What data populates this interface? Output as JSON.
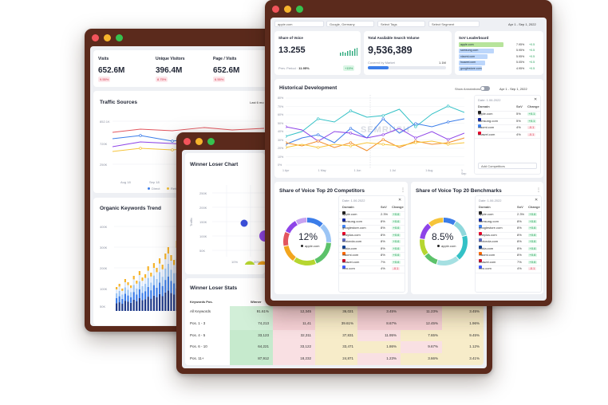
{
  "left_window": {
    "metrics": [
      {
        "label": "Visits",
        "value": "652.6M",
        "change": "9.55%"
      },
      {
        "label": "Unique Visitors",
        "value": "396.4M",
        "change": "8.75%"
      },
      {
        "label": "Page / Visits",
        "value": "652.6M",
        "change": "6.55%"
      }
    ],
    "traffic_title": "Traffic Sources",
    "traffic_button": "Last 6 mo",
    "traffic_y": [
      "852.1K",
      "720K",
      "250K"
    ],
    "traffic_x": [
      "Aug 18",
      "Sep 18",
      "Oct 18"
    ],
    "traffic_legend": [
      "Direct",
      "Referral"
    ],
    "organic_title": "Organic Keywords Trend",
    "organic_y": [
      "400K",
      "300K",
      "200K",
      "100K",
      "50K"
    ]
  },
  "mid_window": {
    "winner_title": "Winner Loser Chart",
    "winner_y": [
      "250K",
      "200K",
      "150K",
      "100K",
      "50K"
    ],
    "winner_x": [
      "10%",
      "20%"
    ],
    "winner_axis": "Traffic",
    "stats_title": "Winner Loser Stats",
    "stats_headers": [
      "Keywords Pos.",
      "Winner"
    ],
    "stats_rows": [
      {
        "label": "All Keywords",
        "values": [
          "91.61%",
          "12,345",
          "36,021",
          "3.45%",
          "11.23%",
          "3.45%"
        ]
      },
      {
        "label": "Pos. 1 - 3",
        "values": [
          "74,213",
          "11,41",
          "39.61%",
          "8.67%",
          "12.45%",
          "1.96%"
        ]
      },
      {
        "label": "Pos. 4 - 5",
        "values": [
          "33,123",
          "32,311",
          "37,831",
          "11.95%",
          "7.65%",
          "9.45%"
        ]
      },
      {
        "label": "Pos. 6 - 10",
        "values": [
          "64,221",
          "33,122",
          "33,471",
          "1.86%",
          "9.67%",
          "1.12%"
        ]
      },
      {
        "label": "Pos. 11+",
        "values": [
          "87,912",
          "18,232",
          "24,871",
          "1.23%",
          "3.66%",
          "3.41%"
        ]
      }
    ]
  },
  "right_window": {
    "domain_select": "apple.com",
    "engine_select": "Google, Germany",
    "tags_select": "Select Tags",
    "segment_select": "Select Segment",
    "date_range": "Apr 1 - Sep 1, 2022",
    "sov_label": "Share of Voice",
    "sov_value": "13.255",
    "sov_sub": "Prev. Period",
    "sov_sub_value": "11.95%",
    "sov_change": "+15%",
    "volume_label": "Total Available Search Volume",
    "volume_value": "9,536,389",
    "volume_sub": "Covered by Market",
    "volume_sub_value": "1.1M",
    "leaderboard_label": "SoV Leaderboard",
    "leaderboard": [
      {
        "domain": "apple.com",
        "value": "7.95%",
        "change": "+0.5"
      },
      {
        "domain": "samsung.com",
        "value": "5.95%",
        "change": "+0.5"
      },
      {
        "domain": "xiaomi.com",
        "value": "5.95%",
        "change": "+0.5"
      },
      {
        "domain": "huawei.com",
        "value": "5.05%",
        "change": "+0.5"
      },
      {
        "domain": "googlestore.com",
        "value": "4.95%",
        "change": "+0.5"
      }
    ],
    "hist_title": "Historical Development",
    "show_annotations": "Show Annotations",
    "hist_y": [
      "80%",
      "70%",
      "60%",
      "50%",
      "40%",
      "30%",
      "20%",
      "10%",
      "0%"
    ],
    "hist_x": [
      "1 Apr",
      "1 May",
      "1 Jun",
      "1 Jul",
      "1 Aug",
      "1 Sep"
    ],
    "hist_panel_date": "Date: 1.06.2022",
    "hist_panel_headers": [
      "Domain",
      "SoV",
      "Change"
    ],
    "hist_panel_rows": [
      {
        "domain": "apple.com",
        "sov": "5%",
        "change": "+0.1"
      },
      {
        "domain": "samsung.com",
        "sov": "5%",
        "change": "+0.1"
      },
      {
        "domain": "xiaomi.com",
        "sov": "4%",
        "change": "-0.1"
      },
      {
        "domain": "huawei.com",
        "sov": "4%",
        "change": "-0.1"
      }
    ],
    "hist_panel_button": "Add Competitors",
    "watermark": "SEMRUSH",
    "competitors_title": "Share of Voice Top 20 Competitors",
    "benchmarks_title": "Share of Voice Top 20 Benchmarks",
    "competitors_pct": "12%",
    "benchmarks_pct": "8.5%",
    "donut_domain": "apple.com",
    "panel_date": "Date: 1.06.2022",
    "panel_headers": [
      "Domain",
      "SoV",
      "Change"
    ],
    "competitors": [
      {
        "domain": "apple.com",
        "sov": "2.3%",
        "change": "+0.6"
      },
      {
        "domain": "samsung.com",
        "sov": "8%",
        "change": "+0.6"
      },
      {
        "domain": "googlestore.com",
        "sov": "8%",
        "change": "+0.6"
      },
      {
        "domain": "oneplus.com",
        "sov": "8%",
        "change": "+0.6"
      },
      {
        "domain": "motorola.com",
        "sov": "8%",
        "change": "+0.6"
      },
      {
        "domain": "nokia.com",
        "sov": "8%",
        "change": "+0.6"
      },
      {
        "domain": "xiaomi.com",
        "sov": "8%",
        "change": "+0.6"
      },
      {
        "domain": "huawei.com",
        "sov": "7%",
        "change": "+0.6"
      },
      {
        "domain": "vivo.com",
        "sov": "4%",
        "change": "-0.1"
      }
    ],
    "benchmarks": [
      {
        "domain": "apple.com",
        "sov": "2.3%",
        "change": "+0.6"
      },
      {
        "domain": "samsung.com",
        "sov": "8%",
        "change": "+0.6"
      },
      {
        "domain": "googlestore.com",
        "sov": "8%",
        "change": "+0.6"
      },
      {
        "domain": "oneplus.com",
        "sov": "8%",
        "change": "+0.6"
      },
      {
        "domain": "motorola.com",
        "sov": "8%",
        "change": "+0.6"
      },
      {
        "domain": "nokia.com",
        "sov": "8%",
        "change": "+0.6"
      },
      {
        "domain": "xiaomi.com",
        "sov": "8%",
        "change": "+0.6"
      },
      {
        "domain": "huawei.com",
        "sov": "7%",
        "change": "+0.6"
      },
      {
        "domain": "vivo.com",
        "sov": "4%",
        "change": "-0.1"
      }
    ]
  },
  "colors": {
    "frame": "#5b2a1c",
    "blue": "#3b7de9",
    "orange": "#f28c28",
    "teal": "#34c1c6",
    "purple": "#8e44e8",
    "yellow": "#f6c43a",
    "green": "#5cc26a",
    "red": "#e2555e",
    "navy": "#1e3a8a"
  }
}
